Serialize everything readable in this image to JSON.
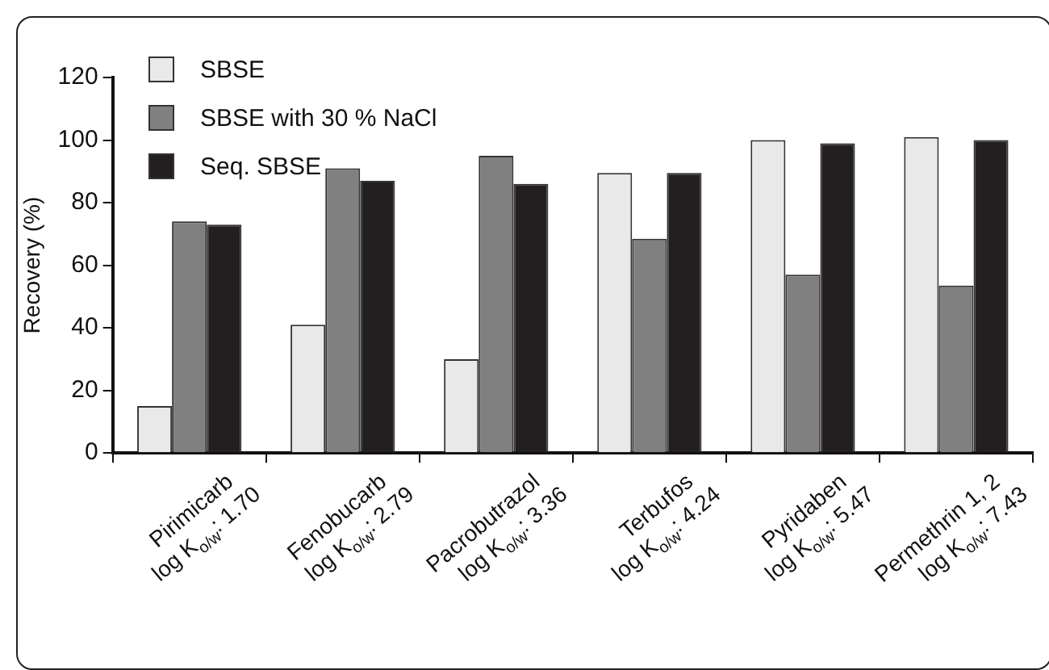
{
  "chart_data": {
    "type": "bar",
    "ylabel": "Recovery (%)",
    "categories": [
      "Pirimicarb\nlog K$_{o/w}$: 1.70",
      "Fenobucarb\nlog K$_{o/w}$: 2.79",
      "Pacrobutrazol\nlog K$_{o/w}$: 3.36",
      "Terbufos\nlog K$_{o/w}$: 4.24",
      "Pyridaben\nlog K$_{o/w}$: 5.47",
      "Permethrin 1, 2\nlog K$_{o/w}$: 7.43"
    ],
    "series": [
      {
        "name": "SBSE",
        "color": "#e8e9e8",
        "values": [
          15,
          41,
          30,
          89.5,
          100,
          101
        ]
      },
      {
        "name": "SBSE with 30 % NaCl",
        "color": "#808080",
        "values": [
          74,
          91,
          95,
          68.5,
          57,
          53.5
        ]
      },
      {
        "name": "Seq. SBSE",
        "color": "#231f20",
        "values": [
          73,
          87,
          86,
          89.5,
          99,
          100
        ]
      }
    ],
    "ylim": [
      0,
      120
    ],
    "yticks": [
      0,
      20,
      40,
      60,
      80,
      100,
      120
    ],
    "grid": false,
    "legend": "top left"
  }
}
